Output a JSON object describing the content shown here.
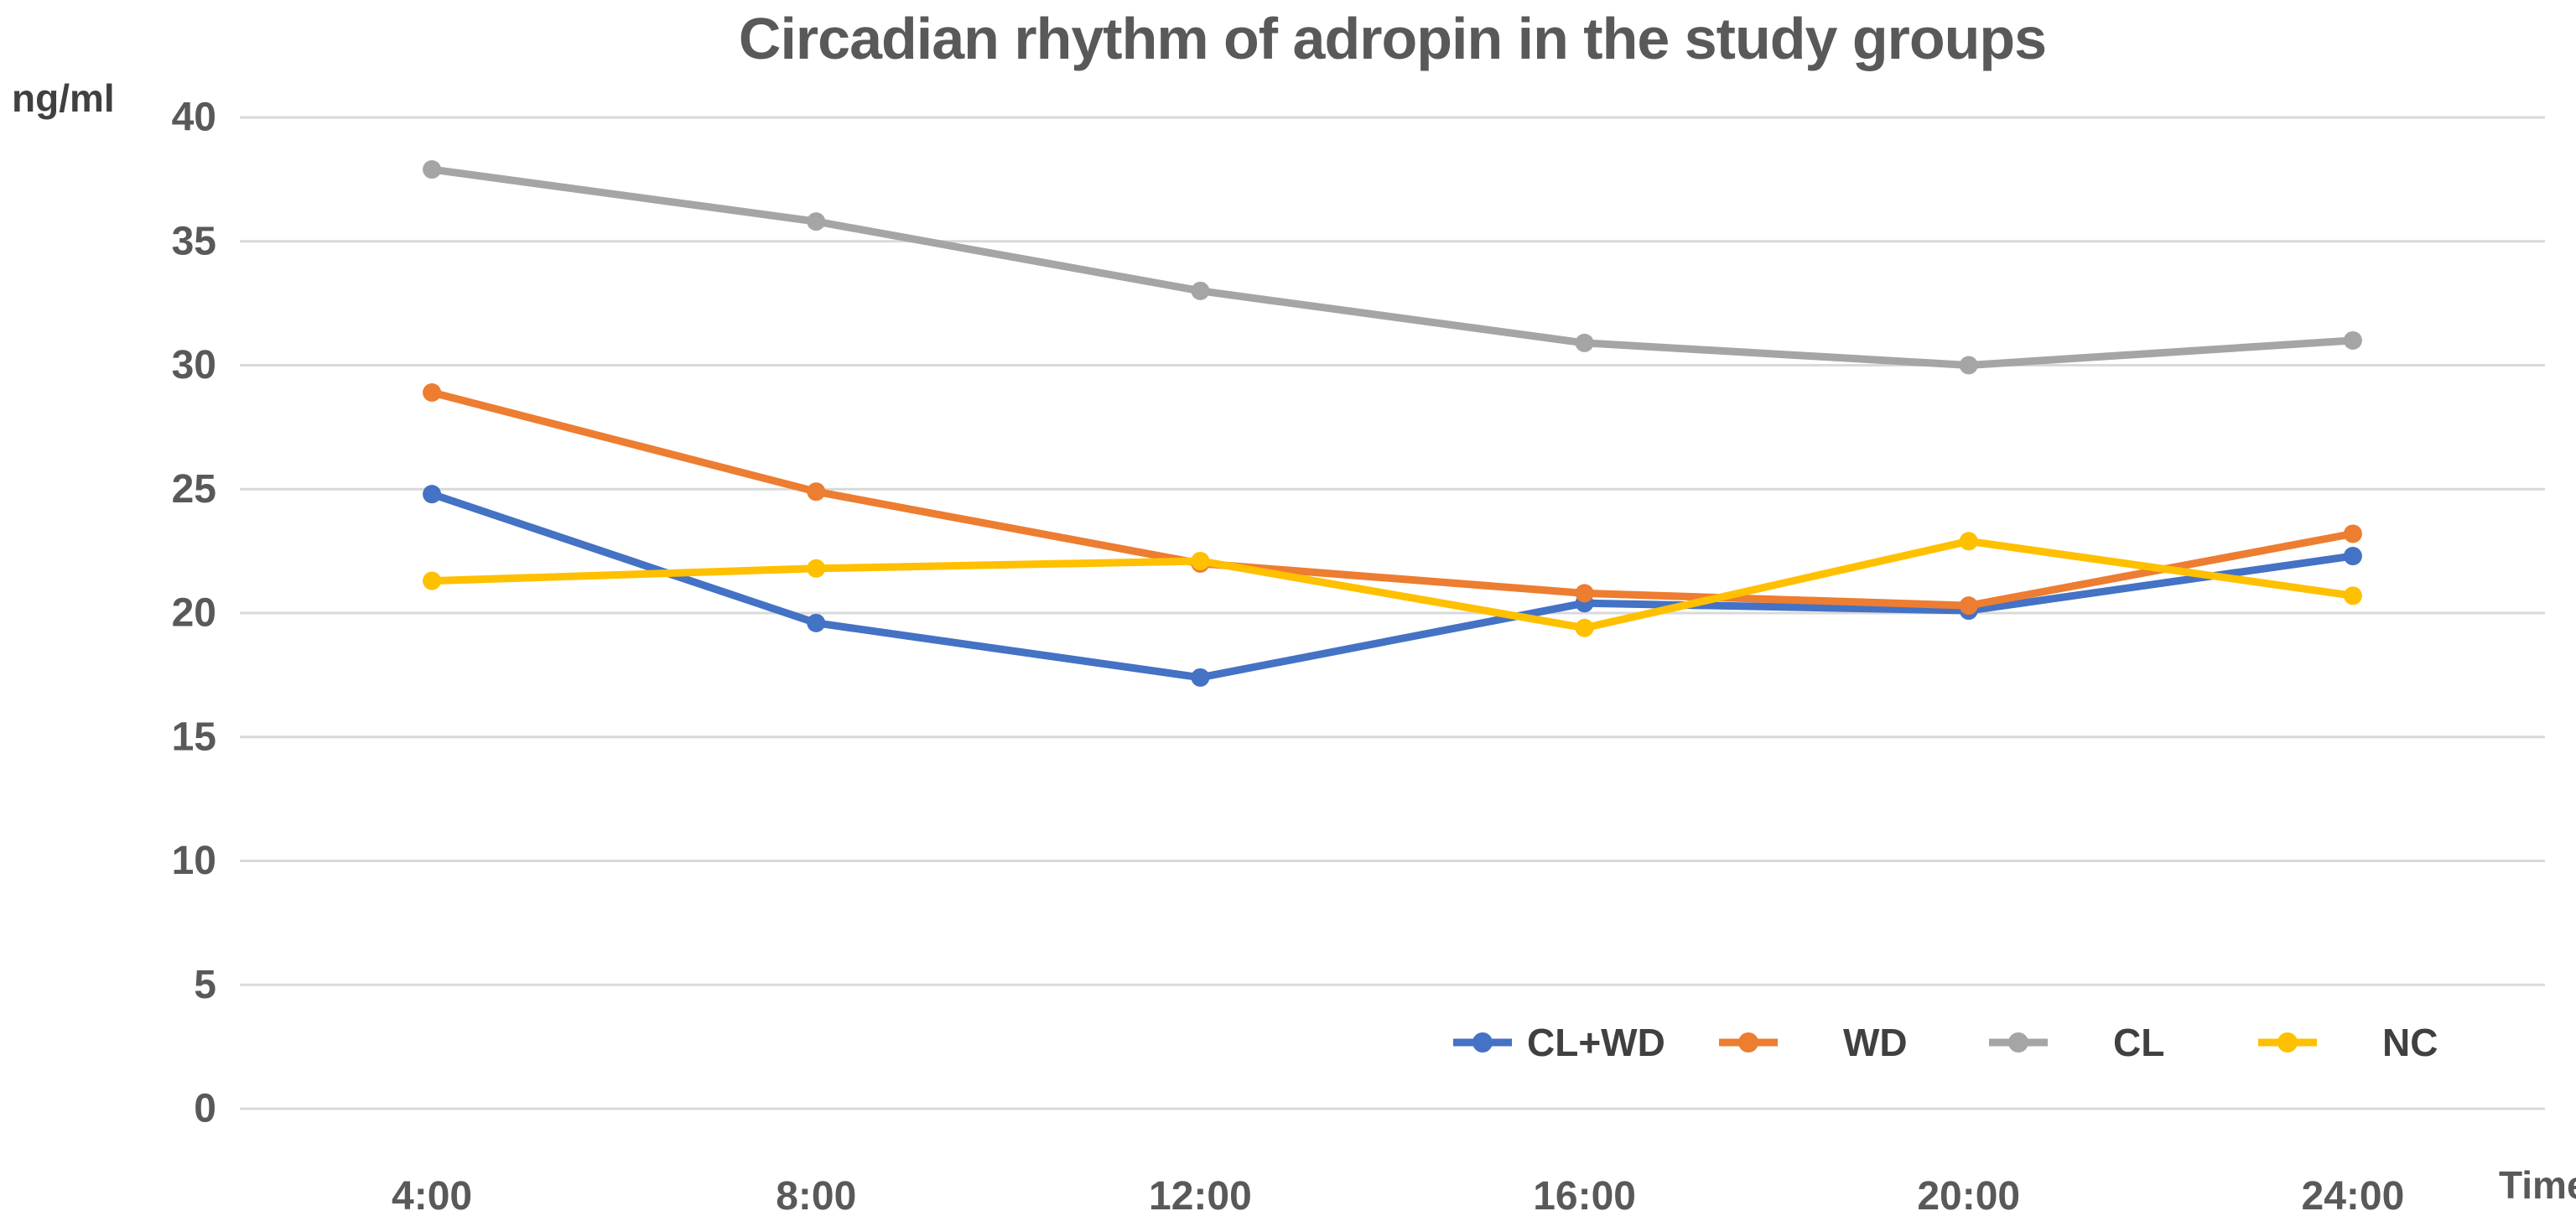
{
  "chart_data": {
    "type": "line",
    "title": "Circadian rhythm of adropin in the study groups",
    "ylabel": "ng/ml",
    "xlabel": "Time",
    "x": [
      "4:00",
      "8:00",
      "12:00",
      "16:00",
      "20:00",
      "24:00"
    ],
    "series": [
      {
        "name": "CL+WD",
        "color": "#4472C4",
        "values": [
          24.8,
          19.6,
          17.4,
          20.4,
          20.1,
          22.3
        ]
      },
      {
        "name": "WD",
        "color": "#ED7D31",
        "values": [
          28.9,
          24.9,
          22.0,
          20.8,
          20.3,
          23.2
        ]
      },
      {
        "name": "CL",
        "color": "#A5A5A5",
        "values": [
          37.9,
          35.8,
          33.0,
          30.9,
          30.0,
          31.0
        ]
      },
      {
        "name": "NC",
        "color": "#FFC000",
        "values": [
          21.3,
          21.8,
          22.1,
          19.4,
          22.9,
          20.7
        ]
      }
    ],
    "ylim": [
      0,
      40
    ],
    "ytick_step": 5,
    "yticks": [
      "0",
      "5",
      "10",
      "15",
      "20",
      "25",
      "30",
      "35",
      "40"
    ],
    "grid": true,
    "legend_position": "bottom-inside",
    "text_color": "#595959",
    "gridline_color": "#D9D9D9"
  }
}
